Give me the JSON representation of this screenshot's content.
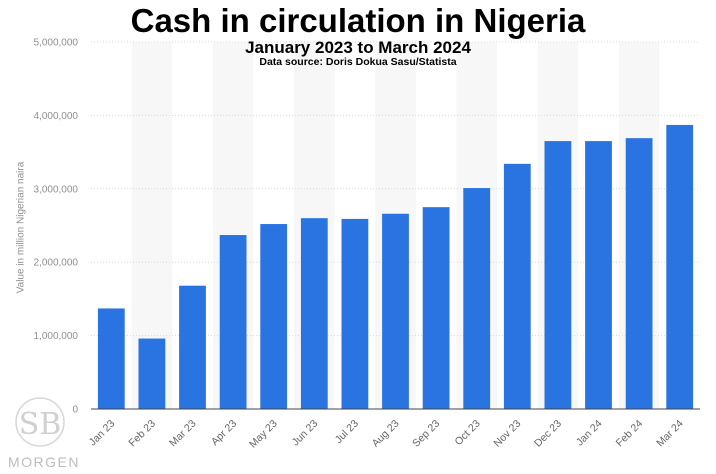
{
  "header": {
    "title": "Cash in circulation in Nigeria",
    "subtitle": "January 2023 to March 2024",
    "source": "Data source: Doris Dokua Sasu/Statista"
  },
  "logo": {
    "monogram": "SB",
    "wordmark": "MORGEN"
  },
  "chart_data": {
    "type": "bar",
    "title": "Cash in circulation in Nigeria",
    "subtitle": "January 2023 to March 2024",
    "xlabel": "",
    "ylabel": "Value in million Nigerian naira",
    "categories": [
      "Jan 23",
      "Feb 23",
      "Mar 23",
      "Apr 23",
      "May 23",
      "Jun 23",
      "Jul 23",
      "Aug 23",
      "Sep 23",
      "Oct 23",
      "Nov 23",
      "Dec 23",
      "Jan 24",
      "Feb 24",
      "Mar 24"
    ],
    "values": [
      1370000,
      960000,
      1680000,
      2370000,
      2520000,
      2600000,
      2590000,
      2660000,
      2750000,
      3010000,
      3340000,
      3650000,
      3650000,
      3690000,
      3870000
    ],
    "ylim": [
      0,
      5000000
    ],
    "yticks": [
      0,
      1000000,
      2000000,
      3000000,
      4000000,
      5000000
    ],
    "ytick_labels": [
      "0",
      "1,000,000",
      "2,000,000",
      "3,000,000",
      "4,000,000",
      "5,000,000"
    ],
    "grid": true,
    "bar_color": "#2a74e2",
    "band_color": "#f7f7f7",
    "grid_color": "#d8d8d8"
  }
}
